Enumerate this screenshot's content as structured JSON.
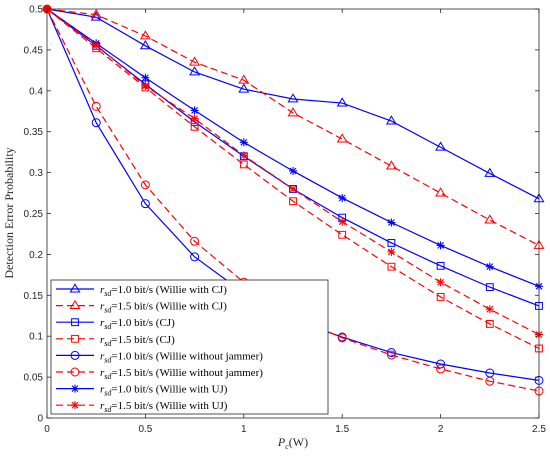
{
  "chart_data": {
    "type": "line",
    "xlabel": "P_c(W)",
    "ylabel": "Detection Error Probability",
    "xlim": [
      0,
      2.5
    ],
    "ylim": [
      0,
      0.5
    ],
    "xticks": [
      0,
      0.5,
      1,
      1.5,
      2,
      2.5
    ],
    "xtick_labels": [
      "0",
      "0.5",
      "1",
      "1.5",
      "2",
      "2.5"
    ],
    "yticks": [
      0,
      0.05,
      0.1,
      0.15,
      0.2,
      0.25,
      0.3,
      0.35,
      0.4,
      0.45,
      0.5
    ],
    "ytick_labels": [
      "0",
      "0.05",
      "0.1",
      "0.15",
      "0.2",
      "0.25",
      "0.3",
      "0.35",
      "0.4",
      "0.45",
      "0.5"
    ],
    "grid": false,
    "legend_position": "bottom-left",
    "x": [
      0,
      0.25,
      0.5,
      0.75,
      1.0,
      1.25,
      1.5,
      1.75,
      2.0,
      2.25,
      2.5
    ],
    "series": [
      {
        "name": "r_sd=1.0 bit/s (Willie with CJ)",
        "color": "#0000ff",
        "dash": "solid",
        "marker": "triangle",
        "values": [
          0.5,
          0.49,
          0.455,
          0.423,
          0.402,
          0.39,
          0.385,
          0.363,
          0.331,
          0.299,
          0.268
        ]
      },
      {
        "name": "r_sd=1.5 bit/s (Willie with CJ)",
        "color": "#ff0000",
        "dash": "dashed",
        "marker": "triangle",
        "values": [
          0.5,
          0.493,
          0.467,
          0.435,
          0.413,
          0.373,
          0.341,
          0.308,
          0.275,
          0.242,
          0.211
        ]
      },
      {
        "name": "r_sd=1.0 bit/s (CJ)",
        "color": "#0000ff",
        "dash": "solid",
        "marker": "square",
        "values": [
          0.5,
          0.455,
          0.408,
          0.362,
          0.32,
          0.28,
          0.245,
          0.214,
          0.186,
          0.16,
          0.137
        ]
      },
      {
        "name": "r_sd=1.5 bit/s (CJ)",
        "color": "#ff0000",
        "dash": "dashed",
        "marker": "square",
        "values": [
          0.5,
          0.452,
          0.404,
          0.356,
          0.31,
          0.265,
          0.224,
          0.185,
          0.148,
          0.115,
          0.085
        ]
      },
      {
        "name": "r_sd=1.0 bit/s (Willie without jammer)",
        "color": "#0000ff",
        "dash": "solid",
        "marker": "circle",
        "values": [
          0.5,
          0.361,
          0.262,
          0.197,
          0.153,
          0.12,
          0.099,
          0.08,
          0.066,
          0.055,
          0.046
        ]
      },
      {
        "name": "r_sd=1.5 bit/s (Willie without jammer)",
        "color": "#ff0000",
        "dash": "dashed",
        "marker": "circle",
        "values": [
          0.5,
          0.381,
          0.285,
          0.216,
          0.166,
          0.124,
          0.098,
          0.077,
          0.06,
          0.045,
          0.033
        ]
      },
      {
        "name": "r_sd=1.0 bit/s (Willie with UJ)",
        "color": "#0000ff",
        "dash": "solid",
        "marker": "asterisk",
        "values": [
          0.5,
          0.458,
          0.416,
          0.376,
          0.337,
          0.302,
          0.269,
          0.239,
          0.211,
          0.185,
          0.161
        ]
      },
      {
        "name": "r_sd=1.5 bit/s (Willie with UJ)",
        "color": "#ff0000",
        "dash": "dashed",
        "marker": "asterisk",
        "values": [
          0.5,
          0.456,
          0.406,
          0.366,
          0.321,
          0.28,
          0.24,
          0.203,
          0.166,
          0.133,
          0.102
        ]
      }
    ],
    "legend": [
      {
        "sym": "r",
        "sub": "sd",
        "text": "=1.0 bit/s (Willie with CJ)"
      },
      {
        "sym": "r",
        "sub": "sd",
        "text": "=1.5 bit/s (Willie with CJ)"
      },
      {
        "sym": "r",
        "sub": "sd",
        "text": "=1.0 bit/s (CJ)"
      },
      {
        "sym": "r",
        "sub": "sd",
        "text": "=1.5 bit/s (CJ)"
      },
      {
        "sym": "r",
        "sub": "sd",
        "text": "=1.0 bit/s (Willie without jammer)"
      },
      {
        "sym": "r",
        "sub": "sd",
        "text": "=1.5 bit/s (Willie without jammer)"
      },
      {
        "sym": "r",
        "sub": "sd",
        "text": "=1.0 bit/s (Willie with UJ)"
      },
      {
        "sym": "r",
        "sub": "sd",
        "text": "=1.5 bit/s (Willie with UJ)"
      }
    ],
    "xlabel_parts": {
      "sym": "P",
      "sub": "c",
      "rest": "(W)"
    }
  }
}
